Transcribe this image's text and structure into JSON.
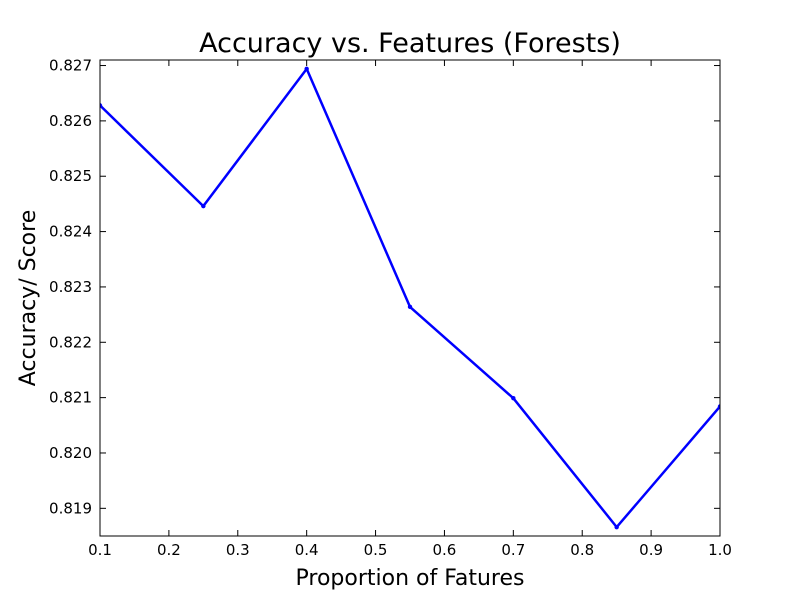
{
  "chart_data": {
    "type": "line",
    "title": "Accuracy vs. Features (Forests)",
    "xlabel": "Proportion of Fatures",
    "ylabel": "Accuracy/ Score",
    "x": [
      0.1,
      0.25,
      0.4,
      0.55,
      0.7,
      0.85,
      1.0
    ],
    "series": [
      {
        "values": [
          0.82628,
          0.82446,
          0.82694,
          0.82264,
          0.82099,
          0.81866,
          0.82084
        ]
      }
    ],
    "xlim": [
      0.1,
      1.0
    ],
    "ylim": [
      0.8185,
      0.8271
    ],
    "xticks": [
      "0.1",
      "0.2",
      "0.3",
      "0.4",
      "0.5",
      "0.6",
      "0.7",
      "0.8",
      "0.9",
      "1.0"
    ],
    "yticks": [
      "0.819",
      "0.820",
      "0.821",
      "0.822",
      "0.823",
      "0.824",
      "0.825",
      "0.826",
      "0.827"
    ],
    "grid": false,
    "line_color": "#0000ff"
  }
}
